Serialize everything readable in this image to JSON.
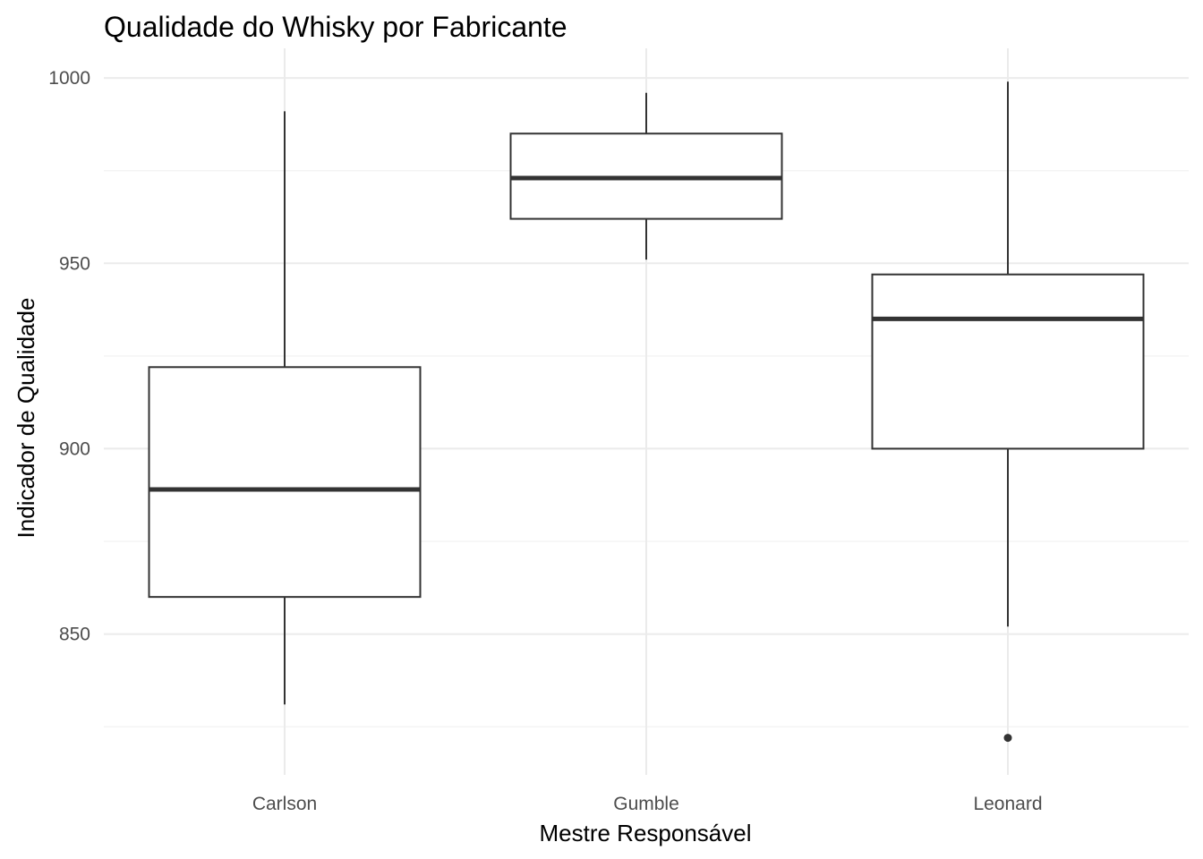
{
  "chart_data": {
    "type": "boxplot",
    "title": "Qualidade do Whisky por Fabricante",
    "xlabel": "Mestre Responsável",
    "ylabel": "Indicador de Qualidade",
    "ylim": [
      812,
      1008
    ],
    "yticks": [
      850,
      900,
      950,
      1000
    ],
    "grid": true,
    "categories": [
      "Carlson",
      "Gumble",
      "Leonard"
    ],
    "boxes": [
      {
        "category": "Carlson",
        "whisker_low": 831,
        "q1": 860,
        "median": 889,
        "q3": 922,
        "whisker_high": 991,
        "outliers": []
      },
      {
        "category": "Gumble",
        "whisker_low": 951,
        "q1": 962,
        "median": 973,
        "q3": 985,
        "whisker_high": 996,
        "outliers": []
      },
      {
        "category": "Leonard",
        "whisker_low": 852,
        "q1": 900,
        "median": 935,
        "q3": 947,
        "whisker_high": 999,
        "outliers": [
          822
        ]
      }
    ],
    "colors": {
      "line": "#333333",
      "grid": "#ebebeb",
      "tick_text": "#4d4d4d"
    }
  }
}
